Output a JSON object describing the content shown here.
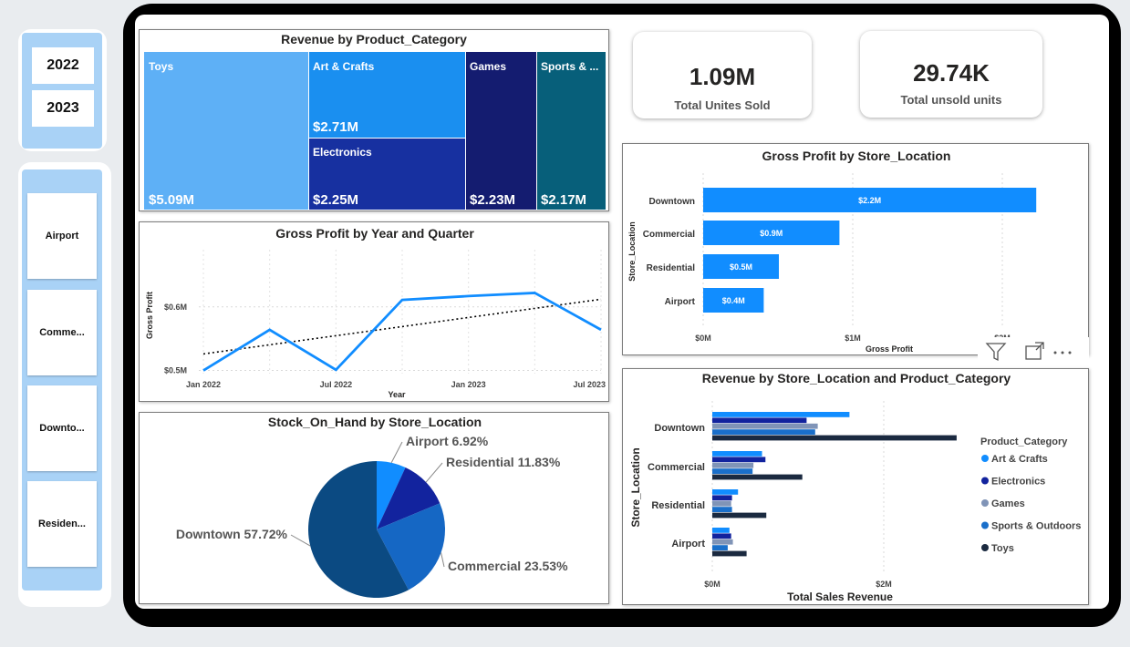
{
  "slicers": {
    "years": [
      "2022",
      "2023"
    ],
    "locations": [
      "Airport",
      "Comme...",
      "Downto...",
      "Residen..."
    ]
  },
  "kpis": {
    "units_sold": {
      "value": "1.09M",
      "label": "Total Unites Sold"
    },
    "unsold_units": {
      "value": "29.74K",
      "label": "Total unsold units"
    }
  },
  "treemap": {
    "title": "Revenue by Product_Category",
    "tiles": [
      {
        "label": "Toys",
        "value": "$5.09M",
        "color": "#5eb0f6"
      },
      {
        "label": "Art & Crafts",
        "value": "$2.71M",
        "color": "#1a8ff0"
      },
      {
        "label": "Electronics",
        "value": "$2.25M",
        "color": "#1730a0"
      },
      {
        "label": "Games",
        "value": "$2.23M",
        "color": "#141c70"
      },
      {
        "label": "Sports & ...",
        "value": "$2.17M",
        "color": "#075f7a"
      }
    ]
  },
  "visual_actions": [
    "filter-icon",
    "focus-mode-icon",
    "more-options-icon"
  ],
  "chart_data": [
    {
      "type": "line",
      "title": "Gross Profit by Year and Quarter",
      "xlabel": "Year",
      "ylabel": "Gross Profit",
      "x": [
        "2022-Q1",
        "2022-Q2",
        "2022-Q3",
        "2022-Q4",
        "2023-Q1",
        "2023-Q2",
        "2023-Q3"
      ],
      "x_tick_labels": [
        "Jan 2022",
        "Jul 2022",
        "Jan 2023",
        "Jul 2023"
      ],
      "y_tick_labels": [
        "$0.5M",
        "$0.6M"
      ],
      "ylim": [
        0.495,
        0.69
      ],
      "series": [
        {
          "values": [
            0.5,
            0.564,
            0.501,
            0.611,
            0.617,
            0.622,
            0.564
          ],
          "color": "#118dff"
        }
      ],
      "trendline": {
        "start": 0.526,
        "end": 0.612,
        "color": "#000000"
      },
      "grid": true
    },
    {
      "type": "pie",
      "title": "Stock_On_Hand by Store_Location",
      "slices": [
        {
          "label": "Airport",
          "value": 6.92,
          "display": "Airport 6.92%",
          "color": "#118dff"
        },
        {
          "label": "Residential",
          "value": 11.83,
          "display": "Residential 11.83%",
          "color": "#12239e"
        },
        {
          "label": "Commercial",
          "value": 23.53,
          "display": "Commercial 23.53%",
          "color": "#1567c4"
        },
        {
          "label": "Downtown",
          "value": 57.72,
          "display": "Downtown 57.72%",
          "color": "#0b4a82"
        }
      ]
    },
    {
      "type": "bar",
      "orientation": "horizontal",
      "title": "Gross Profit by Store_Location",
      "xlabel": "Gross Profit",
      "ylabel": "Store_Location",
      "categories": [
        "Downtown",
        "Commercial",
        "Residential",
        "Airport"
      ],
      "values": [
        2.2,
        0.9,
        0.5,
        0.4
      ],
      "data_labels": [
        "$2.2M",
        "$0.9M",
        "$0.5M",
        "$0.4M"
      ],
      "x_tick_labels": [
        "$0M",
        "$1M",
        "$2M"
      ],
      "xlim": [
        0,
        2.25
      ],
      "color": "#118dff",
      "grid": true
    },
    {
      "type": "bar",
      "orientation": "horizontal",
      "title": "Revenue by Store_Location and Product_Category",
      "xlabel": "Total Sales Revenue",
      "ylabel": "Store_Location",
      "legend_title": "Product_Category",
      "legend_position": "right",
      "categories": [
        "Downtown",
        "Commercial",
        "Residential",
        "Airport"
      ],
      "x_tick_labels": [
        "$0M",
        "$2M"
      ],
      "xlim": [
        0,
        3.0
      ],
      "series": [
        {
          "name": "Art & Crafts",
          "color": "#118dff",
          "values": [
            1.6,
            0.58,
            0.3,
            0.2
          ]
        },
        {
          "name": "Electronics",
          "color": "#12239e",
          "values": [
            1.1,
            0.62,
            0.23,
            0.22
          ]
        },
        {
          "name": "Games",
          "color": "#8094b7",
          "values": [
            1.23,
            0.48,
            0.22,
            0.24
          ]
        },
        {
          "name": "Sports & Outdoors",
          "color": "#1a6fca",
          "values": [
            1.2,
            0.47,
            0.23,
            0.18
          ]
        },
        {
          "name": "Toys",
          "color": "#1b2a40",
          "values": [
            2.85,
            1.05,
            0.63,
            0.4
          ]
        }
      ],
      "grid": true
    }
  ]
}
